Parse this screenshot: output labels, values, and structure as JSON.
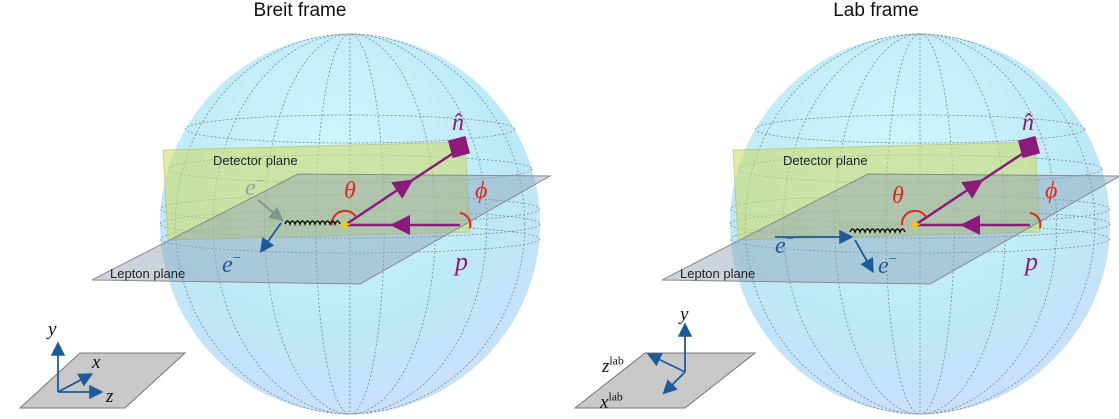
{
  "panels": [
    {
      "title": "Breit frame",
      "detector_plane": "Detector plane",
      "lepton_plane": "Lepton plane",
      "n_hat": "n̂",
      "theta": "θ",
      "phi": "ϕ",
      "p": "p",
      "electron_in": {
        "label": "e",
        "sup": "−"
      },
      "electron_out": {
        "label": "e",
        "sup": "−"
      },
      "axes": [
        {
          "label": "y"
        },
        {
          "label": "x"
        },
        {
          "label": "z"
        }
      ]
    },
    {
      "title": "Lab frame",
      "detector_plane": "Detector plane",
      "lepton_plane": "Lepton plane",
      "n_hat": "n̂",
      "theta": "θ",
      "phi": "ϕ",
      "p": "p",
      "electron_in": {
        "label": "e",
        "sup": "−"
      },
      "electron_out": {
        "label": "e",
        "sup": "−"
      },
      "axes": [
        {
          "label": "y"
        },
        {
          "label": "z",
          "sup": "lab"
        },
        {
          "label": "x",
          "sup": "lab"
        }
      ]
    }
  ]
}
